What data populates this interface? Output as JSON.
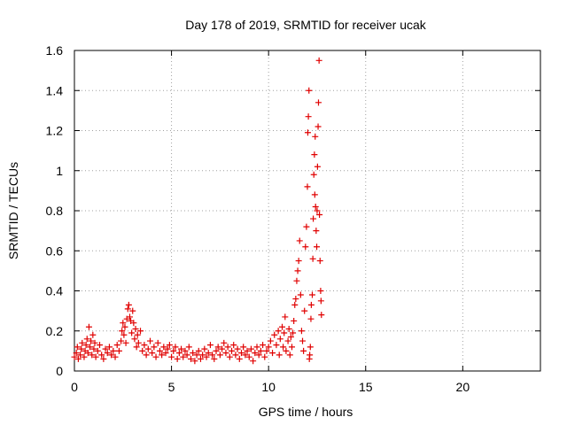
{
  "chart_data": {
    "type": "scatter",
    "title": "Day 178 of 2019, SRMTID for receiver ucak",
    "xlabel": "GPS time / hours",
    "ylabel": "SRMTID / TECUs",
    "xlim": [
      0,
      24
    ],
    "ylim": [
      0,
      1.6
    ],
    "xticks": [
      0,
      5,
      10,
      15,
      20
    ],
    "yticks": [
      0,
      0.2,
      0.4,
      0.6,
      0.8,
      1,
      1.2,
      1.4,
      1.6
    ],
    "ytick_labels": [
      "0",
      "0.2",
      "0.4",
      "0.6",
      "0.8",
      "1",
      "1.2",
      "1.4",
      "1.6"
    ],
    "grid": true,
    "marker": "+",
    "series": [
      {
        "name": "SRMTID",
        "color": "#e00000",
        "points": [
          [
            0.0,
            0.07
          ],
          [
            0.1,
            0.09
          ],
          [
            0.15,
            0.12
          ],
          [
            0.2,
            0.06
          ],
          [
            0.3,
            0.08
          ],
          [
            0.35,
            0.11
          ],
          [
            0.4,
            0.14
          ],
          [
            0.5,
            0.07
          ],
          [
            0.55,
            0.1
          ],
          [
            0.6,
            0.13
          ],
          [
            0.65,
            0.16
          ],
          [
            0.7,
            0.09
          ],
          [
            0.75,
            0.22
          ],
          [
            0.8,
            0.12
          ],
          [
            0.85,
            0.15
          ],
          [
            0.9,
            0.08
          ],
          [
            0.95,
            0.18
          ],
          [
            1.0,
            0.11
          ],
          [
            1.05,
            0.14
          ],
          [
            1.1,
            0.07
          ],
          [
            1.2,
            0.1
          ],
          [
            1.3,
            0.13
          ],
          [
            1.4,
            0.08
          ],
          [
            1.5,
            0.06
          ],
          [
            1.6,
            0.11
          ],
          [
            1.7,
            0.09
          ],
          [
            1.8,
            0.12
          ],
          [
            1.9,
            0.08
          ],
          [
            2.0,
            0.1
          ],
          [
            2.1,
            0.07
          ],
          [
            2.2,
            0.13
          ],
          [
            2.3,
            0.1
          ],
          [
            2.4,
            0.15
          ],
          [
            2.45,
            0.2
          ],
          [
            2.5,
            0.24
          ],
          [
            2.55,
            0.18
          ],
          [
            2.6,
            0.22
          ],
          [
            2.65,
            0.14
          ],
          [
            2.7,
            0.26
          ],
          [
            2.75,
            0.31
          ],
          [
            2.8,
            0.33
          ],
          [
            2.85,
            0.27
          ],
          [
            2.9,
            0.25
          ],
          [
            2.95,
            0.19
          ],
          [
            3.0,
            0.3
          ],
          [
            3.05,
            0.24
          ],
          [
            3.1,
            0.16
          ],
          [
            3.15,
            0.21
          ],
          [
            3.2,
            0.12
          ],
          [
            3.25,
            0.18
          ],
          [
            3.3,
            0.14
          ],
          [
            3.4,
            0.2
          ],
          [
            3.5,
            0.1
          ],
          [
            3.6,
            0.13
          ],
          [
            3.7,
            0.08
          ],
          [
            3.8,
            0.11
          ],
          [
            3.9,
            0.15
          ],
          [
            4.0,
            0.09
          ],
          [
            4.1,
            0.12
          ],
          [
            4.2,
            0.07
          ],
          [
            4.3,
            0.14
          ],
          [
            4.4,
            0.1
          ],
          [
            4.5,
            0.08
          ],
          [
            4.6,
            0.12
          ],
          [
            4.7,
            0.09
          ],
          [
            4.8,
            0.11
          ],
          [
            4.9,
            0.13
          ],
          [
            5.0,
            0.07
          ],
          [
            5.1,
            0.1
          ],
          [
            5.2,
            0.12
          ],
          [
            5.3,
            0.06
          ],
          [
            5.4,
            0.09
          ],
          [
            5.5,
            0.11
          ],
          [
            5.6,
            0.07
          ],
          [
            5.7,
            0.1
          ],
          [
            5.8,
            0.08
          ],
          [
            5.9,
            0.12
          ],
          [
            6.0,
            0.06
          ],
          [
            6.1,
            0.09
          ],
          [
            6.2,
            0.05
          ],
          [
            6.3,
            0.08
          ],
          [
            6.4,
            0.1
          ],
          [
            6.5,
            0.06
          ],
          [
            6.6,
            0.08
          ],
          [
            6.7,
            0.11
          ],
          [
            6.8,
            0.07
          ],
          [
            6.9,
            0.09
          ],
          [
            7.0,
            0.13
          ],
          [
            7.1,
            0.08
          ],
          [
            7.2,
            0.06
          ],
          [
            7.3,
            0.1
          ],
          [
            7.4,
            0.12
          ],
          [
            7.5,
            0.08
          ],
          [
            7.6,
            0.11
          ],
          [
            7.7,
            0.14
          ],
          [
            7.8,
            0.09
          ],
          [
            7.9,
            0.12
          ],
          [
            8.0,
            0.07
          ],
          [
            8.1,
            0.1
          ],
          [
            8.2,
            0.13
          ],
          [
            8.3,
            0.08
          ],
          [
            8.4,
            0.11
          ],
          [
            8.5,
            0.06
          ],
          [
            8.6,
            0.09
          ],
          [
            8.7,
            0.12
          ],
          [
            8.8,
            0.08
          ],
          [
            8.9,
            0.1
          ],
          [
            9.0,
            0.07
          ],
          [
            9.1,
            0.11
          ],
          [
            9.2,
            0.05
          ],
          [
            9.3,
            0.09
          ],
          [
            9.4,
            0.12
          ],
          [
            9.5,
            0.08
          ],
          [
            9.6,
            0.1
          ],
          [
            9.7,
            0.13
          ],
          [
            9.8,
            0.07
          ],
          [
            9.9,
            0.1
          ],
          [
            10.0,
            0.12
          ],
          [
            10.1,
            0.15
          ],
          [
            10.2,
            0.09
          ],
          [
            10.3,
            0.18
          ],
          [
            10.4,
            0.13
          ],
          [
            10.5,
            0.2
          ],
          [
            10.55,
            0.08
          ],
          [
            10.6,
            0.16
          ],
          [
            10.7,
            0.22
          ],
          [
            10.75,
            0.12
          ],
          [
            10.8,
            0.19
          ],
          [
            10.85,
            0.27
          ],
          [
            10.9,
            0.1
          ],
          [
            11.0,
            0.15
          ],
          [
            11.05,
            0.21
          ],
          [
            11.1,
            0.08
          ],
          [
            11.15,
            0.17
          ],
          [
            11.2,
            0.12
          ],
          [
            11.25,
            0.19
          ],
          [
            11.3,
            0.25
          ],
          [
            11.35,
            0.33
          ],
          [
            11.4,
            0.36
          ],
          [
            11.45,
            0.45
          ],
          [
            11.5,
            0.5
          ],
          [
            11.55,
            0.55
          ],
          [
            11.6,
            0.65
          ],
          [
            11.65,
            0.38
          ],
          [
            11.7,
            0.2
          ],
          [
            11.75,
            0.15
          ],
          [
            11.8,
            0.1
          ],
          [
            11.85,
            0.3
          ],
          [
            11.9,
            0.62
          ],
          [
            11.95,
            0.72
          ],
          [
            12.0,
            0.92
          ],
          [
            12.02,
            1.19
          ],
          [
            12.05,
            1.27
          ],
          [
            12.08,
            1.4
          ],
          [
            12.1,
            0.06
          ],
          [
            12.12,
            0.08
          ],
          [
            12.15,
            0.12
          ],
          [
            12.18,
            0.26
          ],
          [
            12.2,
            0.33
          ],
          [
            12.25,
            0.38
          ],
          [
            12.28,
            0.56
          ],
          [
            12.3,
            0.76
          ],
          [
            12.33,
            0.98
          ],
          [
            12.36,
            1.08
          ],
          [
            12.38,
            0.88
          ],
          [
            12.4,
            1.17
          ],
          [
            12.42,
            0.82
          ],
          [
            12.45,
            0.7
          ],
          [
            12.48,
            0.62
          ],
          [
            12.5,
            0.8
          ],
          [
            12.52,
            1.02
          ],
          [
            12.55,
            1.22
          ],
          [
            12.57,
            1.34
          ],
          [
            12.6,
            1.55
          ],
          [
            12.62,
            0.78
          ],
          [
            12.65,
            0.55
          ],
          [
            12.68,
            0.4
          ],
          [
            12.7,
            0.35
          ],
          [
            12.72,
            0.28
          ]
        ]
      }
    ]
  }
}
